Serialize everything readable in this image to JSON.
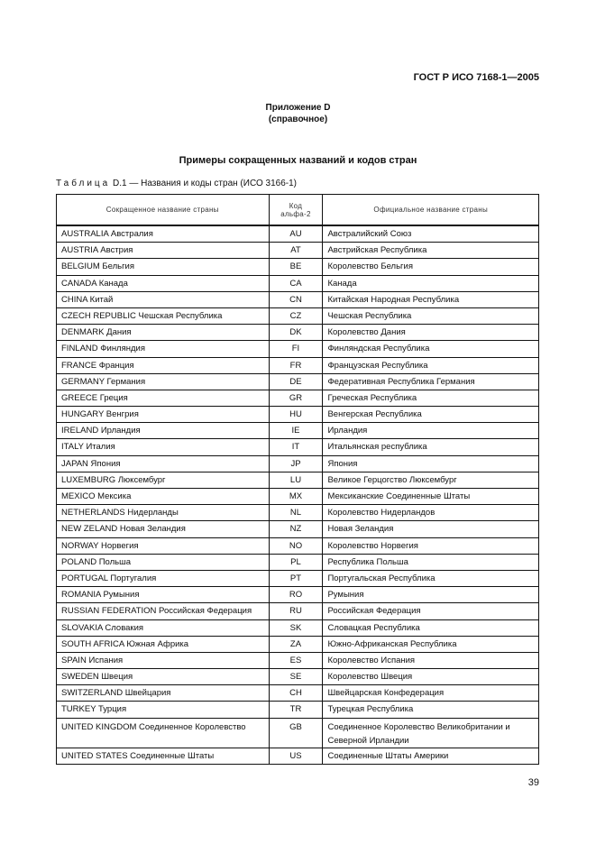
{
  "header": {
    "standard": "ГОСТ Р ИСО 7168-1—2005"
  },
  "appendix": {
    "label": "Приложение D",
    "type": "(справочное)"
  },
  "title": "Примеры сокращенных названий и кодов стран",
  "caption": {
    "prefix": "Таблица",
    "text": "D.1 — Названия и коды стран (ИСО 3166-1)"
  },
  "table": {
    "headers": [
      "Сокращенное название страны",
      "Код альфа-2",
      "Официальное название страны"
    ],
    "rows": [
      [
        "AUSTRALIA Австралия",
        "AU",
        "Австралийский Союз"
      ],
      [
        "AUSTRIA Австрия",
        "AT",
        "Австрийская Республика"
      ],
      [
        "BELGIUM Бельгия",
        "BE",
        "Королевство Бельгия"
      ],
      [
        "CANADA Канада",
        "CA",
        "Канада"
      ],
      [
        "CHINA Китай",
        "CN",
        "Китайская Народная Республика"
      ],
      [
        "CZECH REPUBLIC Чешская Республика",
        "CZ",
        "Чешская Республика"
      ],
      [
        "DENMARK Дания",
        "DK",
        "Королевство Дания"
      ],
      [
        "FINLAND Финляндия",
        "FI",
        "Финляндская Республика"
      ],
      [
        "FRANCE Франция",
        "FR",
        "Французская Республика"
      ],
      [
        "GERMANY Германия",
        "DE",
        "Федеративная Республика Германия"
      ],
      [
        "GREECE Греция",
        "GR",
        "Греческая Республика"
      ],
      [
        "HUNGARY Венгрия",
        "HU",
        "Венгерская Республика"
      ],
      [
        "IRELAND Ирландия",
        "IE",
        "Ирландия"
      ],
      [
        "ITALY Италия",
        "IT",
        "Итальянская республика"
      ],
      [
        "JAPAN Япония",
        "JP",
        "Япония"
      ],
      [
        "LUXEMBURG Люксембург",
        "LU",
        "Великое Герцогство Люксембург"
      ],
      [
        "MEXICO Мексика",
        "MX",
        "Мексиканские Соединенные Штаты"
      ],
      [
        "NETHERLANDS Нидерланды",
        "NL",
        "Королевство Нидерландов"
      ],
      [
        "NEW ZELAND Новая Зеландия",
        "NZ",
        "Новая Зеландия"
      ],
      [
        "NORWAY Норвегия",
        "NO",
        "Королевство Норвегия"
      ],
      [
        "POLAND Польша",
        "PL",
        "Республика Польша"
      ],
      [
        "PORTUGAL Португалия",
        "PT",
        "Португальская Республика"
      ],
      [
        "ROMANIA Румыния",
        "RO",
        "Румыния"
      ],
      [
        "RUSSIAN FEDERATION Российская Федерация",
        "RU",
        "Российская Федерация"
      ],
      [
        "SLOVAKIA Словакия",
        "SK",
        "Словацкая Республика"
      ],
      [
        "SOUTH AFRICA Южная Африка",
        "ZA",
        "Южно-Африканская Республика"
      ],
      [
        "SPAIN Испания",
        "ES",
        "Королевство Испания"
      ],
      [
        "SWEDEN Швеция",
        "SE",
        "Королевство Швеция"
      ],
      [
        "SWITZERLAND Швейцария",
        "CH",
        "Швейцарская Конфедерация"
      ],
      [
        "TURKEY Турция",
        "TR",
        "Турецкая Республика"
      ],
      [
        "UNITED KINGDOM Соединенное Королевство",
        "GB",
        "Соединенное Королевство Великобритании и Северной Ирландии"
      ],
      [
        "UNITED STATES Соединенные Штаты",
        "US",
        "Соединенные Штаты Америки"
      ]
    ]
  },
  "page_number": "39"
}
